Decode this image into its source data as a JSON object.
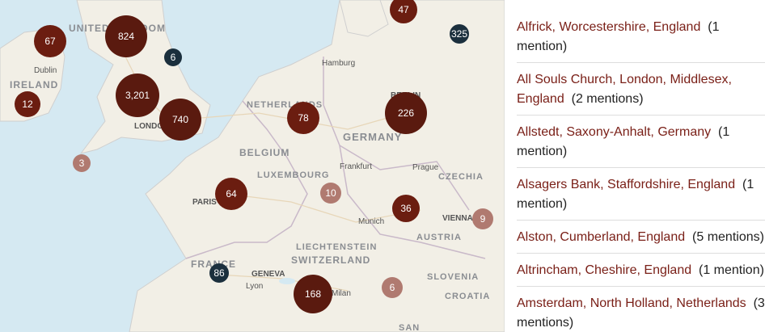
{
  "map": {
    "country_labels": [
      "UNITED KINGDOM",
      "IRELAND",
      "NETHERLANDS",
      "GERMANY",
      "BELGIUM",
      "LUXEMBOURG",
      "CZECHIA",
      "FRANCE",
      "LIECHTENSTEIN",
      "SWITZERLAND",
      "AUSTRIA",
      "SLOVENIA",
      "CROATIA",
      "SAN"
    ],
    "city_labels": [
      "Dublin",
      "Hamburg",
      "Frankfurt",
      "Prague",
      "Munich",
      "VIENNA",
      "PARIS",
      "GENEVA",
      "Lyon",
      "LONDON",
      "BERLIN",
      "Milan"
    ],
    "markers": [
      {
        "label": "67",
        "color": "#6b1d10"
      },
      {
        "label": "824",
        "color": "#5a1a0f"
      },
      {
        "label": "6",
        "color": "#1b2f3d"
      },
      {
        "label": "12",
        "color": "#6b1d10"
      },
      {
        "label": "3,201",
        "color": "#5a1a0f"
      },
      {
        "label": "740",
        "color": "#5a1a0f"
      },
      {
        "label": "3",
        "color": "#b07a70"
      },
      {
        "label": "78",
        "color": "#6b1d10"
      },
      {
        "label": "226",
        "color": "#5a1a0f"
      },
      {
        "label": "47",
        "color": "#6b1d10"
      },
      {
        "label": "325",
        "color": "#1b2f3d"
      },
      {
        "label": "64",
        "color": "#6b1d10"
      },
      {
        "label": "10",
        "color": "#b07a70"
      },
      {
        "label": "36",
        "color": "#6b1d10"
      },
      {
        "label": "9",
        "color": "#b07a70"
      },
      {
        "label": "86",
        "color": "#1b2f3d"
      },
      {
        "label": "168",
        "color": "#5a1a0f"
      },
      {
        "label": "6",
        "color": "#b07a70"
      }
    ]
  },
  "list": {
    "items": [
      {
        "place": "Alfrick, Worcestershire, England",
        "count": "(1 mention)"
      },
      {
        "place": "All Souls Church, London, Middlesex, England",
        "count": "(2 mentions)"
      },
      {
        "place": "Allstedt, Saxony-Anhalt, Germany",
        "count": "(1 mention)"
      },
      {
        "place": "Alsagers Bank, Staffordshire, England",
        "count": "(1 mention)"
      },
      {
        "place": "Alston, Cumberland, England",
        "count": "(5 mentions)"
      },
      {
        "place": "Altrincham, Cheshire, England",
        "count": "(1 mention)"
      },
      {
        "place": "Amsterdam, North Holland, Netherlands",
        "count": "(3 mentions)"
      }
    ]
  }
}
